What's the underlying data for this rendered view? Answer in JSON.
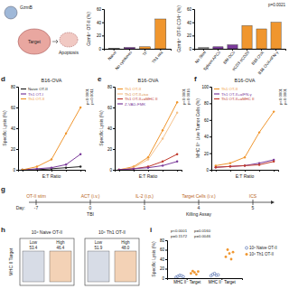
{
  "panel_labels": [
    "d",
    "e",
    "f",
    "g",
    "h",
    "i"
  ],
  "cartoon": {
    "texts": [
      "GzmB",
      "Target",
      "Apoptosis"
    ]
  },
  "chart_data": [
    {
      "type": "bar",
      "y_label": "Gzmb⁺ OT-II (%)",
      "categories": [
        "Naive",
        "No cytokines",
        "TF",
        "Th1 mix"
      ],
      "values": [
        1,
        2,
        3,
        45
      ],
      "colors": [
        "#9e9e9e",
        "#7a3a9a",
        "#f0962e",
        "#f0962e"
      ],
      "ylim": [
        0,
        60
      ],
      "yticks": [
        0,
        20,
        40,
        60
      ]
    },
    {
      "type": "bar",
      "y_label": "Gzmb⁺ OT-II CD4⁺ (%)",
      "categories": [
        "No Stim",
        "Spleen APCs",
        "BM-DCs",
        "αCD3 αCD28",
        "B16 OVA",
        "B16 OVA+IFN-γ"
      ],
      "values": [
        2,
        3,
        6,
        35,
        30,
        40
      ],
      "colors": [
        "#9e9e9e",
        "#7a3a9a",
        "#7a3a9a",
        "#f0962e",
        "#f0962e",
        "#f0962e"
      ],
      "ylim": [
        0,
        60
      ],
      "yticks": [
        0,
        20,
        40,
        60
      ],
      "annotations": [
        "p=0.0021"
      ]
    },
    {
      "type": "line",
      "title": "B16-OVA",
      "x_label": "E:T Ratio",
      "y_label": "Specific Lysis (%)",
      "categories": [
        null,
        null,
        null,
        null,
        null
      ],
      "tick_labels": "y",
      "ylim": [
        0,
        80
      ],
      "yticks": [
        0,
        20,
        40,
        60,
        80
      ],
      "legend": "upper left",
      "series": [
        {
          "name": "Naive OT-II",
          "color": "#222222",
          "values": [
            0,
            0,
            1,
            2,
            3
          ]
        },
        {
          "name": "Th1 OT-I",
          "color": "#7a3a9a",
          "values": [
            0,
            1,
            2,
            5,
            15
          ]
        },
        {
          "name": "Th1 OT-II",
          "color": "#f0962e",
          "values": [
            0,
            3,
            10,
            35,
            60
          ]
        }
      ],
      "annotations": [
        "p<0.0001",
        "p=0.0011"
      ]
    },
    {
      "type": "line",
      "title": "B16-OVA",
      "x_label": "E:T Ratio",
      "y_label": "Specific Lysis (%)",
      "categories": [
        null,
        null,
        null,
        null,
        null
      ],
      "tick_labels": "y",
      "ylim": [
        0,
        80
      ],
      "yticks": [
        0,
        20,
        40,
        60,
        80
      ],
      "legend": "upper left",
      "series": [
        {
          "name": "Th1 OT-II",
          "color": "#f0962e",
          "values": [
            0,
            3,
            12,
            38,
            65
          ]
        },
        {
          "name": "Th1 OT-II+iso",
          "color": "#f6c28b",
          "values": [
            0,
            2,
            10,
            30,
            55
          ]
        },
        {
          "name": "Th1 OT-II+αMHC II",
          "color": "#c0392b",
          "values": [
            0,
            1,
            3,
            8,
            15
          ]
        },
        {
          "name": "Z-VAD-FMK",
          "color": "#7a3a9a",
          "values": [
            0,
            1,
            2,
            4,
            8
          ]
        }
      ],
      "annotations": [
        "p<0.0001",
        "p=0.0016"
      ]
    },
    {
      "type": "line",
      "title": "B16-OVA",
      "x_label": "E:T Ratio",
      "y_label": "MHC II⁺ Live Tumor Cells (%)",
      "categories": [
        null,
        null,
        null,
        null,
        null
      ],
      "tick_labels": "y",
      "ylim": [
        0,
        100
      ],
      "yticks": [
        0,
        20,
        40,
        60,
        80,
        100
      ],
      "legend": "upper left",
      "series": [
        {
          "name": "Th1 OT-II",
          "color": "#f0962e",
          "values": [
            5,
            8,
            15,
            45,
            70
          ]
        },
        {
          "name": "Th1 OT-II+αIFN-γ",
          "color": "#7a3a9a",
          "values": [
            3,
            4,
            5,
            8,
            12
          ]
        },
        {
          "name": "Th1 OT-II+αMHC II",
          "color": "#c0392b",
          "values": [
            3,
            4,
            5,
            6,
            10
          ]
        }
      ],
      "annotations": [
        "p<0.0001",
        "p=0.0001"
      ]
    },
    {
      "type": "strip",
      "y_label": "Specific Lysis (%)",
      "categories": [
        "MHC II⁻ Target",
        "MHC II⁺ Target"
      ],
      "ylim": [
        0,
        80
      ],
      "yticks": [
        0,
        20,
        40,
        60,
        80
      ],
      "legend": "right",
      "series": [
        {
          "name": "10⁶ Naive OT-II",
          "color": "#3b5ba5",
          "marker": "circle-open",
          "values": [
            [
              2,
              4,
              6,
              5,
              3
            ],
            [
              5,
              8,
              10,
              6,
              7
            ]
          ]
        },
        {
          "name": "10⁶ Th1 OT-II",
          "color": "#f0962e",
          "marker": "circle",
          "values": [
            [
              10,
              15,
              12,
              8,
              14
            ],
            [
              45,
              60,
              52,
              40,
              55
            ]
          ]
        }
      ],
      "annotations": [
        "p<0.0001",
        "p=0.0160",
        "p=0.1572",
        "p=0.0046"
      ]
    }
  ],
  "schematic": {
    "day_label": "Day:",
    "steps": [
      {
        "day": "-7",
        "text": "OT-II stim"
      },
      {
        "day": "0",
        "text": "ACT (i.v.)",
        "below": "TBI"
      },
      {
        "day": "1",
        "text": "IL-2 (i.p.)"
      },
      {
        "day": "4",
        "text": "Target Cells (i.v.)",
        "below": "Killing Assay"
      },
      {
        "day": "5",
        "text": "ICS"
      }
    ]
  },
  "flow": {
    "y_label": "MHC II Target",
    "plots": [
      {
        "title": "10⁶ Naive OT-II",
        "gates": [
          "Low",
          "High"
        ],
        "values": [
          "53.4",
          "46.4"
        ]
      },
      {
        "title": "10⁶ Th1 OT-II",
        "gates": [
          "Low",
          "High"
        ],
        "values": [
          "51.9",
          "48.0"
        ]
      }
    ]
  }
}
